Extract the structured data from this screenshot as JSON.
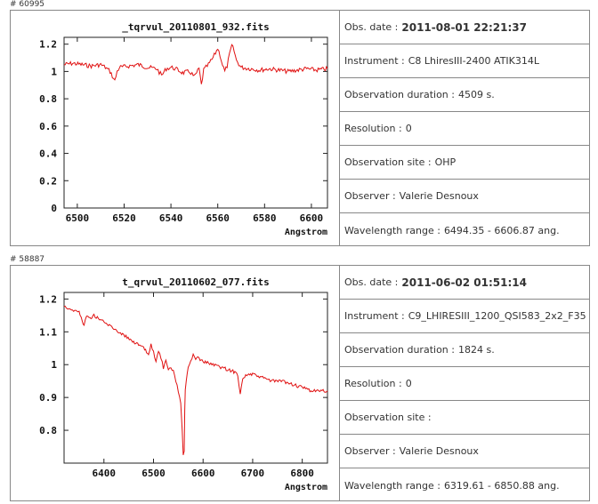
{
  "records": [
    {
      "id": "# 60995",
      "info": [
        {
          "label": "Obs. date :",
          "value": "2011-08-01 22:21:37"
        },
        {
          "label": "Instrument :",
          "value": "C8 LhiresIII-2400 ATIK314L"
        },
        {
          "label": "Observation duration :",
          "value": "4509 s."
        },
        {
          "label": "Resolution :",
          "value": "0"
        },
        {
          "label": "Observation site :",
          "value": "OHP"
        },
        {
          "label": "Observer :",
          "value": "Valerie Desnoux"
        },
        {
          "label": "Wavelength range :",
          "value": "6494.35 - 6606.87 ang."
        }
      ]
    },
    {
      "id": "# 58887",
      "info": [
        {
          "label": "Obs. date :",
          "value": "2011-06-02 01:51:14"
        },
        {
          "label": "Instrument :",
          "value": "C9_LHIRESIII_1200_QSI583_2x2_F35"
        },
        {
          "label": "Observation duration :",
          "value": "1824 s."
        },
        {
          "label": "Resolution :",
          "value": "0"
        },
        {
          "label": "Observation site :",
          "value": ""
        },
        {
          "label": "Observer :",
          "value": "Valerie Desnoux"
        },
        {
          "label": "Wavelength range :",
          "value": "6319.61 - 6850.88 ang."
        }
      ]
    }
  ],
  "chart_data": [
    {
      "type": "line",
      "title": "_tqrvul_20110801_932.fits",
      "xlabel": "Angstrom",
      "ylabel": "",
      "xlim": [
        6494.35,
        6606.87
      ],
      "ylim": [
        0,
        1.25
      ],
      "xticks": [
        6500,
        6520,
        6540,
        6560,
        6580,
        6600
      ],
      "yticks": [
        0,
        0.2,
        0.4,
        0.6,
        0.8,
        1,
        1.2
      ],
      "ytick_labels": [
        "0",
        "0.2",
        "0.4",
        "0.6",
        "0.8",
        "1",
        "1.2"
      ],
      "color": "#e01010",
      "series": [
        {
          "x": [
            6494.35,
            6498,
            6502,
            6506,
            6510,
            6512,
            6514,
            6516,
            6517,
            6518,
            6522,
            6526,
            6530,
            6534,
            6536,
            6538,
            6540,
            6542,
            6545,
            6548,
            6550,
            6552,
            6553,
            6554,
            6556,
            6558,
            6560,
            6561,
            6562,
            6563,
            6564,
            6565,
            6566,
            6567,
            6568,
            6570,
            6574,
            6578,
            6582,
            6586,
            6590,
            6594,
            6598,
            6602,
            6606.87
          ],
          "y": [
            1.05,
            1.06,
            1.05,
            1.04,
            1.05,
            1.03,
            1.0,
            0.93,
            1.0,
            1.03,
            1.04,
            1.05,
            1.03,
            1.02,
            0.97,
            1.02,
            1.03,
            1.02,
            0.99,
            1.0,
            0.96,
            1.02,
            0.9,
            1.01,
            1.05,
            1.1,
            1.17,
            1.12,
            1.05,
            1.0,
            1.04,
            1.12,
            1.19,
            1.15,
            1.08,
            1.03,
            1.02,
            1.01,
            1.02,
            1.01,
            1.0,
            1.01,
            1.02,
            1.01,
            1.02
          ]
        }
      ]
    },
    {
      "type": "line",
      "title": "t_qrvul_20110602_077.fits",
      "xlabel": "Angstrom",
      "ylabel": "",
      "xlim": [
        6319.61,
        6850.88
      ],
      "ylim": [
        0.7,
        1.22
      ],
      "xticks": [
        6400,
        6500,
        6600,
        6700,
        6800
      ],
      "yticks": [
        0.8,
        0.9,
        1,
        1.1,
        1.2
      ],
      "ytick_labels": [
        "0.8",
        "0.9",
        "1",
        "1.1",
        "1.2"
      ],
      "color": "#e01010",
      "series": [
        {
          "x": [
            6319.61,
            6330,
            6350,
            6360,
            6365,
            6370,
            6380,
            6400,
            6420,
            6440,
            6460,
            6470,
            6480,
            6490,
            6495,
            6500,
            6505,
            6510,
            6515,
            6520,
            6525,
            6530,
            6535,
            6540,
            6545,
            6550,
            6555,
            6558,
            6560,
            6562,
            6563,
            6564,
            6566,
            6568,
            6570,
            6575,
            6580,
            6585,
            6590,
            6600,
            6620,
            6640,
            6660,
            6670,
            6675,
            6680,
            6690,
            6700,
            6720,
            6740,
            6760,
            6780,
            6800,
            6820,
            6850.88
          ],
          "y": [
            1.18,
            1.17,
            1.16,
            1.12,
            1.15,
            1.14,
            1.15,
            1.13,
            1.11,
            1.09,
            1.07,
            1.06,
            1.05,
            1.03,
            1.06,
            1.04,
            1.01,
            1.04,
            1.02,
            0.99,
            1.01,
            0.98,
            0.99,
            0.98,
            0.95,
            0.92,
            0.88,
            0.8,
            0.72,
            0.74,
            0.86,
            0.92,
            0.95,
            0.97,
            0.99,
            1.01,
            1.03,
            1.02,
            1.02,
            1.01,
            1.0,
            0.99,
            0.98,
            0.97,
            0.91,
            0.96,
            0.97,
            0.97,
            0.96,
            0.95,
            0.95,
            0.94,
            0.93,
            0.92,
            0.92
          ]
        }
      ]
    }
  ]
}
